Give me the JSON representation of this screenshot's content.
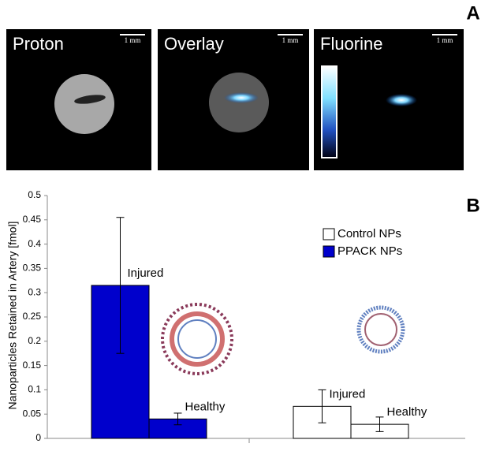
{
  "panel_a": {
    "letter": "A",
    "panels": [
      {
        "label": "Proton",
        "scale": "1 mm"
      },
      {
        "label": "Overlay",
        "scale": "1 mm"
      },
      {
        "label": "Fluorine",
        "scale": "1 mm"
      }
    ]
  },
  "panel_b": {
    "letter": "B"
  },
  "chart_data": {
    "type": "bar",
    "y_label": "Nanoparticles Retained in Artery [fmol]",
    "ylim": [
      0,
      0.5
    ],
    "yticks": [
      0,
      0.05,
      0.1,
      0.15,
      0.2,
      0.25,
      0.3,
      0.35,
      0.4,
      0.45,
      0.5
    ],
    "series": [
      {
        "name": "Control NPs",
        "color": "#ffffff",
        "labels": [
          "Injured",
          "Healthy"
        ],
        "values": [
          0.066,
          0.029
        ],
        "errors": [
          0.034,
          0.015
        ]
      },
      {
        "name": "PPACK NPs",
        "color": "#0000cc",
        "labels": [
          "Injured",
          "Healthy"
        ],
        "values": [
          0.315,
          0.04
        ],
        "errors": [
          0.14,
          0.012
        ]
      }
    ]
  }
}
